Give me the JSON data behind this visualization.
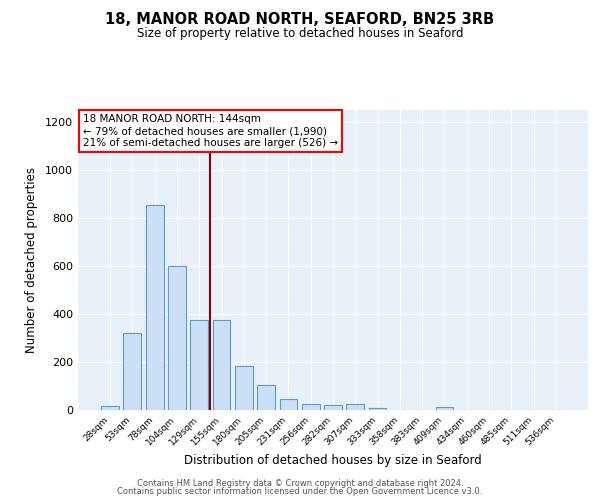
{
  "title1": "18, MANOR ROAD NORTH, SEAFORD, BN25 3RB",
  "title2": "Size of property relative to detached houses in Seaford",
  "xlabel": "Distribution of detached houses by size in Seaford",
  "ylabel": "Number of detached properties",
  "categories": [
    "28sqm",
    "53sqm",
    "78sqm",
    "104sqm",
    "129sqm",
    "155sqm",
    "180sqm",
    "205sqm",
    "231sqm",
    "256sqm",
    "282sqm",
    "307sqm",
    "333sqm",
    "358sqm",
    "383sqm",
    "409sqm",
    "434sqm",
    "460sqm",
    "485sqm",
    "511sqm",
    "536sqm"
  ],
  "values": [
    15,
    320,
    855,
    600,
    375,
    375,
    185,
    105,
    47,
    25,
    20,
    25,
    10,
    0,
    0,
    12,
    0,
    0,
    0,
    0,
    0
  ],
  "bar_color": "#cce0f5",
  "bar_edge_color": "#5b9bd5",
  "vline_x_index": 4.5,
  "vline_color": "#8b0000",
  "annotation_text": "18 MANOR ROAD NORTH: 144sqm\n← 79% of detached houses are smaller (1,990)\n21% of semi-detached houses are larger (526) →",
  "annotation_box_color": "white",
  "annotation_box_edge": "red",
  "ylim": [
    0,
    1250
  ],
  "yticks": [
    0,
    200,
    400,
    600,
    800,
    1000,
    1200
  ],
  "background_color": "#e8f0f8",
  "footer1": "Contains HM Land Registry data © Crown copyright and database right 2024.",
  "footer2": "Contains public sector information licensed under the Open Government Licence v3.0."
}
